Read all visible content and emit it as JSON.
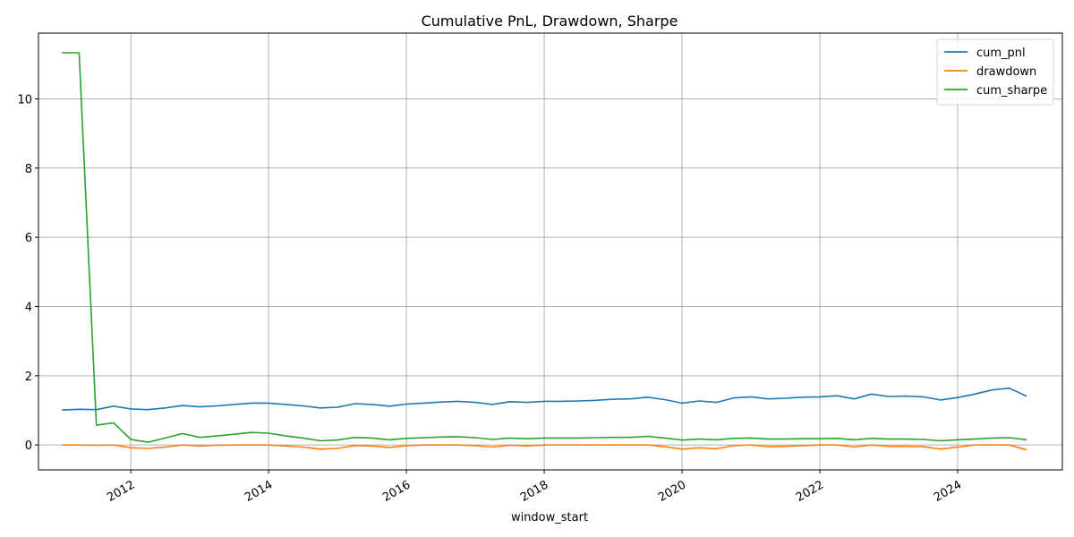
{
  "chart_data": {
    "type": "line",
    "title": "Cumulative PnL, Drawdown, Sharpe",
    "xlabel": "window_start",
    "ylabel": "",
    "xlim": [
      2010.66,
      2025.52
    ],
    "ylim": [
      -0.72,
      11.9
    ],
    "x_ticks": [
      {
        "value": 2012,
        "label": "2012"
      },
      {
        "value": 2014,
        "label": "2014"
      },
      {
        "value": 2016,
        "label": "2016"
      },
      {
        "value": 2018,
        "label": "2018"
      },
      {
        "value": 2020,
        "label": "2020"
      },
      {
        "value": 2022,
        "label": "2022"
      },
      {
        "value": 2024,
        "label": "2024"
      }
    ],
    "y_ticks": [
      {
        "value": 0,
        "label": "0"
      },
      {
        "value": 2,
        "label": "2"
      },
      {
        "value": 4,
        "label": "4"
      },
      {
        "value": 6,
        "label": "6"
      },
      {
        "value": 8,
        "label": "8"
      },
      {
        "value": 10,
        "label": "10"
      }
    ],
    "grid": true,
    "legend_position": "top-right",
    "x": [
      2011.0,
      2011.25,
      2011.5,
      2011.75,
      2012.0,
      2012.25,
      2012.5,
      2012.75,
      2013.0,
      2013.25,
      2013.5,
      2013.75,
      2014.0,
      2014.25,
      2014.5,
      2014.75,
      2015.0,
      2015.25,
      2015.5,
      2015.75,
      2016.0,
      2016.25,
      2016.5,
      2016.75,
      2017.0,
      2017.25,
      2017.5,
      2017.75,
      2018.0,
      2018.25,
      2018.5,
      2018.75,
      2019.0,
      2019.25,
      2019.5,
      2019.75,
      2020.0,
      2020.25,
      2020.5,
      2020.75,
      2021.0,
      2021.25,
      2021.5,
      2021.75,
      2022.0,
      2022.25,
      2022.5,
      2022.75,
      2023.0,
      2023.25,
      2023.5,
      2023.75,
      2024.0,
      2024.25,
      2024.5,
      2024.75,
      2025.0
    ],
    "series": [
      {
        "name": "cum_pnl",
        "color": "#1f77b4",
        "values": [
          1.01,
          1.03,
          1.02,
          1.12,
          1.04,
          1.02,
          1.07,
          1.14,
          1.1,
          1.13,
          1.17,
          1.21,
          1.21,
          1.17,
          1.13,
          1.07,
          1.09,
          1.19,
          1.17,
          1.12,
          1.18,
          1.21,
          1.24,
          1.26,
          1.23,
          1.17,
          1.25,
          1.23,
          1.26,
          1.26,
          1.27,
          1.29,
          1.32,
          1.33,
          1.38,
          1.31,
          1.21,
          1.27,
          1.23,
          1.36,
          1.39,
          1.33,
          1.35,
          1.38,
          1.39,
          1.42,
          1.33,
          1.47,
          1.4,
          1.41,
          1.39,
          1.3,
          1.37,
          1.47,
          1.59,
          1.64,
          1.41
        ]
      },
      {
        "name": "drawdown",
        "color": "#ff7f0e",
        "values": [
          0.0,
          0.0,
          -0.01,
          0.0,
          -0.08,
          -0.1,
          -0.06,
          0.0,
          -0.03,
          -0.01,
          0.0,
          0.0,
          0.0,
          -0.03,
          -0.06,
          -0.12,
          -0.1,
          -0.02,
          -0.03,
          -0.07,
          -0.02,
          0.0,
          0.0,
          0.0,
          -0.02,
          -0.06,
          -0.01,
          -0.03,
          0.0,
          0.0,
          0.0,
          0.0,
          0.0,
          0.0,
          0.0,
          -0.05,
          -0.12,
          -0.08,
          -0.11,
          -0.02,
          0.0,
          -0.05,
          -0.04,
          -0.02,
          0.0,
          0.0,
          -0.06,
          0.0,
          -0.04,
          -0.04,
          -0.05,
          -0.12,
          -0.06,
          0.0,
          0.0,
          0.0,
          -0.14
        ]
      },
      {
        "name": "cum_sharpe",
        "color": "#2ca02c",
        "values": [
          11.33,
          11.33,
          0.57,
          0.64,
          0.16,
          0.08,
          0.2,
          0.33,
          0.22,
          0.26,
          0.31,
          0.36,
          0.34,
          0.26,
          0.2,
          0.12,
          0.14,
          0.22,
          0.2,
          0.15,
          0.19,
          0.21,
          0.23,
          0.24,
          0.21,
          0.16,
          0.2,
          0.18,
          0.2,
          0.2,
          0.2,
          0.21,
          0.22,
          0.22,
          0.25,
          0.2,
          0.14,
          0.17,
          0.15,
          0.19,
          0.2,
          0.17,
          0.17,
          0.18,
          0.18,
          0.19,
          0.15,
          0.19,
          0.17,
          0.17,
          0.16,
          0.12,
          0.15,
          0.17,
          0.2,
          0.21,
          0.15
        ]
      }
    ]
  }
}
